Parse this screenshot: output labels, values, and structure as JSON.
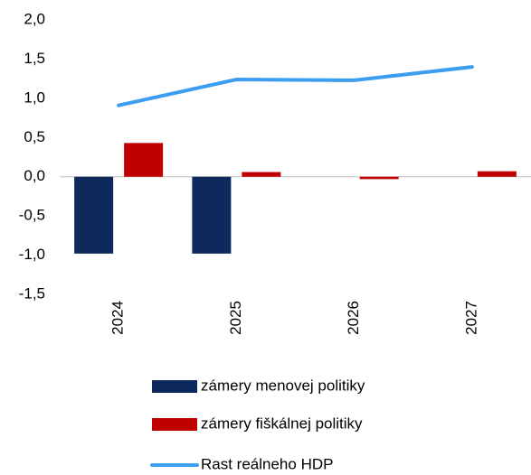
{
  "chart_data": {
    "type": "bar",
    "categories": [
      "2024",
      "2025",
      "2026",
      "2027"
    ],
    "series": [
      {
        "name": "zámery menovej politiky",
        "type": "bar",
        "color": "#0e2a5c",
        "values": [
          -0.98,
          -0.98,
          null,
          null
        ]
      },
      {
        "name": "zámery fiškálnej politiky",
        "type": "bar",
        "color": "#c00000",
        "values": [
          0.43,
          0.06,
          -0.03,
          0.07
        ]
      },
      {
        "name": "Rast reálneho HDP",
        "type": "line",
        "color": "#3b9ef0",
        "values": [
          0.91,
          1.24,
          1.23,
          1.4
        ]
      }
    ],
    "ylim": [
      -1.5,
      2.0
    ],
    "yticks": [
      {
        "value": -1.5,
        "label": "-1,5"
      },
      {
        "value": -1.0,
        "label": "-1,0"
      },
      {
        "value": -0.5,
        "label": "-0,5"
      },
      {
        "value": 0,
        "label": "0,0"
      },
      {
        "value": 0.5,
        "label": "0,5"
      },
      {
        "value": 1.0,
        "label": "1,0"
      },
      {
        "value": 1.5,
        "label": "1,5"
      },
      {
        "value": 2.0,
        "label": "2,0"
      }
    ],
    "grid": false
  }
}
